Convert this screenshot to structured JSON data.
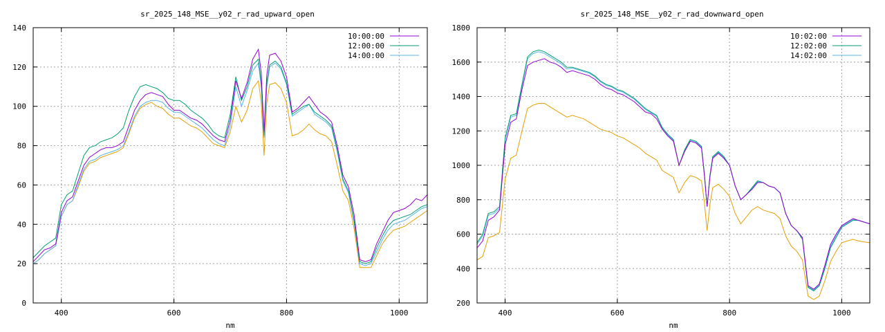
{
  "chart_data": [
    {
      "type": "line",
      "title": "sr_2025_148_MSE__y02_r_rad_upward_open",
      "xlabel": "nm",
      "ylabel": "",
      "xlim": [
        350,
        1050
      ],
      "ylim": [
        0,
        140
      ],
      "xticks": [
        400,
        600,
        800,
        1000
      ],
      "yticks": [
        0,
        20,
        40,
        60,
        80,
        100,
        120,
        140
      ],
      "grid": true,
      "legend": "top-right",
      "x": [
        350,
        360,
        370,
        380,
        390,
        400,
        410,
        420,
        430,
        440,
        450,
        460,
        470,
        480,
        490,
        500,
        510,
        520,
        530,
        540,
        550,
        560,
        570,
        580,
        590,
        600,
        610,
        620,
        630,
        640,
        650,
        660,
        670,
        680,
        690,
        700,
        710,
        720,
        730,
        740,
        750,
        755,
        760,
        765,
        770,
        780,
        790,
        800,
        810,
        820,
        830,
        840,
        850,
        860,
        870,
        880,
        890,
        900,
        910,
        920,
        930,
        940,
        950,
        960,
        970,
        980,
        990,
        1000,
        1010,
        1020,
        1030,
        1040,
        1050
      ],
      "series": [
        {
          "name": "10:00:00",
          "color": "#9400d3",
          "values": [
            21,
            24,
            27,
            28,
            30,
            46,
            52,
            54,
            62,
            70,
            74,
            76,
            78,
            79,
            79,
            80,
            82,
            90,
            98,
            103,
            106,
            107,
            106,
            105,
            101,
            98,
            98,
            96,
            94,
            93,
            91,
            88,
            85,
            83,
            82,
            93,
            113,
            104,
            112,
            124,
            129,
            117,
            87,
            116,
            126,
            127,
            123,
            115,
            97,
            99,
            102,
            105,
            101,
            97,
            95,
            92,
            80,
            65,
            59,
            45,
            22,
            21,
            22,
            30,
            36,
            42,
            46,
            47,
            48,
            50,
            53,
            52,
            55
          ]
        },
        {
          "name": "12:00:00",
          "color": "#009e73",
          "values": [
            23,
            26,
            29,
            31,
            33,
            50,
            55,
            57,
            66,
            75,
            79,
            80,
            82,
            83,
            84,
            86,
            89,
            98,
            105,
            110,
            111,
            110,
            109,
            107,
            104,
            103,
            103,
            101,
            98,
            96,
            94,
            91,
            87,
            85,
            84,
            96,
            115,
            103,
            110,
            121,
            124,
            112,
            85,
            112,
            121,
            123,
            120,
            112,
            96,
            98,
            100,
            101,
            97,
            95,
            93,
            90,
            78,
            63,
            57,
            42,
            21,
            20,
            21,
            28,
            34,
            39,
            42,
            43,
            44,
            45,
            47,
            49,
            50
          ]
        },
        {
          "name": "14:00:00",
          "color": "#56b4e9",
          "values": [
            20,
            22,
            25,
            27,
            29,
            44,
            50,
            52,
            60,
            68,
            72,
            73,
            75,
            76,
            77,
            78,
            80,
            87,
            95,
            100,
            102,
            103,
            103,
            102,
            99,
            97,
            97,
            95,
            93,
            91,
            89,
            86,
            83,
            81,
            80,
            90,
            110,
            100,
            108,
            118,
            122,
            110,
            84,
            110,
            120,
            122,
            119,
            111,
            95,
            97,
            99,
            101,
            96,
            94,
            92,
            89,
            77,
            62,
            56,
            41,
            20,
            19,
            20,
            26,
            32,
            37,
            40,
            41,
            42,
            44,
            46,
            48,
            49
          ]
        },
        {
          "name": "",
          "color": "#e69f00",
          "values": [
            20,
            22,
            25,
            27,
            29,
            44,
            50,
            52,
            59,
            67,
            71,
            72,
            74,
            75,
            76,
            77,
            79,
            86,
            94,
            99,
            101,
            102,
            100,
            99,
            96,
            94,
            94,
            92,
            90,
            89,
            87,
            84,
            81,
            80,
            79,
            87,
            100,
            92,
            98,
            109,
            113,
            102,
            75,
            102,
            111,
            112,
            109,
            102,
            85,
            86,
            88,
            91,
            88,
            86,
            85,
            82,
            70,
            57,
            52,
            38,
            18,
            18,
            18,
            24,
            30,
            34,
            37,
            38,
            39,
            41,
            43,
            45,
            47
          ]
        }
      ]
    },
    {
      "type": "line",
      "title": "sr_2025_148_MSE__y02_r_rad_downward_open",
      "xlabel": "nm",
      "ylabel": "",
      "xlim": [
        350,
        1050
      ],
      "ylim": [
        200,
        1800
      ],
      "xticks": [
        400,
        600,
        800,
        1000
      ],
      "yticks": [
        200,
        400,
        600,
        800,
        1000,
        1200,
        1400,
        1600,
        1800
      ],
      "grid": true,
      "legend": "top-right",
      "x": [
        350,
        360,
        370,
        380,
        390,
        400,
        410,
        420,
        430,
        440,
        450,
        460,
        470,
        480,
        490,
        500,
        510,
        520,
        530,
        540,
        550,
        560,
        570,
        580,
        590,
        600,
        610,
        620,
        630,
        640,
        650,
        660,
        670,
        680,
        690,
        700,
        710,
        720,
        730,
        740,
        750,
        755,
        760,
        765,
        770,
        780,
        790,
        800,
        810,
        820,
        830,
        840,
        850,
        860,
        870,
        880,
        890,
        900,
        910,
        920,
        930,
        940,
        950,
        960,
        970,
        980,
        990,
        1000,
        1010,
        1020,
        1030,
        1040,
        1050
      ],
      "series": [
        {
          "name": "10:02:00",
          "color": "#9400d3",
          "values": [
            520,
            560,
            680,
            700,
            740,
            1120,
            1250,
            1270,
            1440,
            1580,
            1600,
            1610,
            1620,
            1600,
            1590,
            1570,
            1540,
            1550,
            1540,
            1530,
            1520,
            1500,
            1470,
            1450,
            1440,
            1420,
            1410,
            1390,
            1370,
            1340,
            1310,
            1300,
            1270,
            1210,
            1170,
            1140,
            1000,
            1080,
            1140,
            1130,
            1100,
            950,
            760,
            930,
            1040,
            1070,
            1040,
            1000,
            880,
            800,
            830,
            860,
            900,
            900,
            880,
            870,
            840,
            720,
            650,
            620,
            580,
            300,
            280,
            310,
            420,
            540,
            600,
            650,
            670,
            690,
            680,
            670,
            660
          ]
        },
        {
          "name": "12:02:00",
          "color": "#009e73",
          "values": [
            550,
            600,
            720,
            730,
            760,
            1160,
            1290,
            1300,
            1470,
            1630,
            1660,
            1670,
            1660,
            1640,
            1620,
            1600,
            1570,
            1570,
            1560,
            1550,
            1540,
            1520,
            1490,
            1470,
            1460,
            1440,
            1430,
            1410,
            1390,
            1360,
            1330,
            1310,
            1290,
            1220,
            1180,
            1150,
            1000,
            1090,
            1150,
            1140,
            1110,
            960,
            760,
            940,
            1050,
            1080,
            1050,
            1000,
            880,
            800,
            830,
            870,
            910,
            900,
            880,
            870,
            840,
            720,
            650,
            620,
            570,
            290,
            270,
            300,
            400,
            520,
            580,
            640,
            660,
            680,
            680,
            670,
            660
          ]
        },
        {
          "name": "14:02:00",
          "color": "#56b4e9",
          "values": [
            540,
            590,
            710,
            720,
            750,
            1150,
            1280,
            1290,
            1460,
            1620,
            1650,
            1660,
            1650,
            1630,
            1610,
            1590,
            1560,
            1565,
            1555,
            1545,
            1535,
            1515,
            1485,
            1465,
            1455,
            1435,
            1425,
            1405,
            1385,
            1355,
            1325,
            1305,
            1285,
            1215,
            1175,
            1145,
            1000,
            1085,
            1145,
            1135,
            1105,
            955,
            760,
            935,
            1045,
            1075,
            1045,
            1000,
            880,
            800,
            830,
            865,
            905,
            900,
            880,
            870,
            840,
            720,
            650,
            620,
            575,
            295,
            275,
            305,
            410,
            530,
            590,
            645,
            665,
            685,
            680,
            670,
            660
          ]
        },
        {
          "name": "",
          "color": "#e69f00",
          "values": [
            450,
            470,
            580,
            590,
            610,
            920,
            1040,
            1060,
            1200,
            1330,
            1350,
            1360,
            1360,
            1340,
            1320,
            1300,
            1280,
            1290,
            1280,
            1270,
            1250,
            1230,
            1210,
            1200,
            1190,
            1170,
            1160,
            1140,
            1120,
            1100,
            1070,
            1050,
            1030,
            970,
            950,
            930,
            840,
            900,
            940,
            930,
            910,
            790,
            620,
            770,
            870,
            890,
            860,
            820,
            720,
            660,
            700,
            740,
            760,
            740,
            730,
            720,
            690,
            590,
            530,
            500,
            450,
            240,
            220,
            240,
            330,
            440,
            500,
            550,
            560,
            570,
            560,
            555,
            550
          ]
        }
      ]
    }
  ]
}
